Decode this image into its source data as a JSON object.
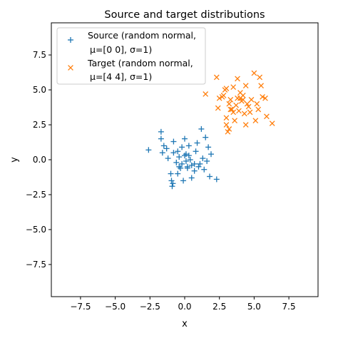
{
  "chart_data": {
    "type": "scatter",
    "title": "Source and target distributions",
    "xlabel": "x",
    "ylabel": "y",
    "xlim": [
      -9.6,
      9.6
    ],
    "ylim": [
      -9.8,
      9.8
    ],
    "xticks": [
      -7.5,
      -5.0,
      -2.5,
      0.0,
      2.5,
      5.0,
      7.5
    ],
    "yticks": [
      -7.5,
      -5.0,
      -2.5,
      0.0,
      2.5,
      5.0,
      7.5
    ],
    "xtick_labels": [
      "−7.5",
      "−5.0",
      "−2.5",
      "0.0",
      "2.5",
      "5.0",
      "7.5"
    ],
    "ytick_labels": [
      "−7.5",
      "−5.0",
      "−2.5",
      "0.0",
      "2.5",
      "5.0",
      "7.5"
    ],
    "grid": false,
    "legend_position": "top-left",
    "series": [
      {
        "name": "Source (random normal,\n μ=[0 0], σ=1)",
        "legend_lines": [
          "Source (random normal,",
          "μ=[0 0], σ=1)"
        ],
        "marker": "plus",
        "color": "#1f77b4",
        "points": [
          [
            -2.6,
            0.7
          ],
          [
            -1.7,
            2.0
          ],
          [
            -1.6,
            0.5
          ],
          [
            -1.5,
            1.0
          ],
          [
            -1.3,
            0.8
          ],
          [
            -1.2,
            0.1
          ],
          [
            -1.0,
            -1.0
          ],
          [
            -0.95,
            -1.5
          ],
          [
            -0.9,
            -1.9
          ],
          [
            -0.85,
            -1.7
          ],
          [
            -0.8,
            0.5
          ],
          [
            -0.8,
            1.3
          ],
          [
            -0.6,
            -0.2
          ],
          [
            -0.5,
            0.6
          ],
          [
            -0.5,
            -1.0
          ],
          [
            -0.4,
            0.2
          ],
          [
            -0.3,
            -0.6
          ],
          [
            -0.2,
            0.9
          ],
          [
            -0.2,
            -0.3
          ],
          [
            -0.1,
            -1.5
          ],
          [
            0.0,
            1.5
          ],
          [
            0.0,
            0.3
          ],
          [
            0.1,
            0.4
          ],
          [
            0.2,
            -0.5
          ],
          [
            0.2,
            -0.6
          ],
          [
            0.3,
            1.0
          ],
          [
            0.3,
            0.3
          ],
          [
            0.4,
            0.0
          ],
          [
            0.5,
            -1.3
          ],
          [
            0.5,
            -0.4
          ],
          [
            0.7,
            -0.8
          ],
          [
            0.7,
            -0.3
          ],
          [
            0.8,
            0.6
          ],
          [
            0.9,
            1.2
          ],
          [
            1.0,
            -0.5
          ],
          [
            1.1,
            -0.3
          ],
          [
            1.2,
            2.2
          ],
          [
            1.3,
            0.1
          ],
          [
            1.4,
            -0.7
          ],
          [
            1.5,
            1.6
          ],
          [
            1.6,
            -0.1
          ],
          [
            1.7,
            0.9
          ],
          [
            1.8,
            -1.2
          ],
          [
            1.9,
            0.4
          ],
          [
            2.3,
            -1.4
          ],
          [
            -1.7,
            1.5
          ],
          [
            0.1,
            -0.1
          ],
          [
            -0.4,
            -0.5
          ]
        ]
      },
      {
        "name": "Target (random normal,\n μ=[4 4], σ=1)",
        "legend_lines": [
          "Target (random normal,",
          "μ=[4 4], σ=1)"
        ],
        "marker": "x",
        "color": "#ff7f0e",
        "points": [
          [
            1.5,
            4.7
          ],
          [
            2.3,
            5.9
          ],
          [
            2.4,
            3.7
          ],
          [
            2.5,
            4.4
          ],
          [
            2.8,
            4.6
          ],
          [
            2.9,
            5.0
          ],
          [
            3.0,
            3.0
          ],
          [
            3.0,
            2.5
          ],
          [
            3.1,
            2.0
          ],
          [
            3.2,
            4.0
          ],
          [
            3.2,
            2.2
          ],
          [
            3.3,
            4.3
          ],
          [
            3.4,
            3.6
          ],
          [
            3.5,
            3.4
          ],
          [
            3.5,
            5.2
          ],
          [
            3.6,
            2.8
          ],
          [
            3.7,
            3.9
          ],
          [
            3.8,
            4.4
          ],
          [
            3.8,
            5.8
          ],
          [
            3.9,
            3.5
          ],
          [
            4.0,
            4.8
          ],
          [
            4.0,
            4.4
          ],
          [
            4.1,
            4.2
          ],
          [
            4.2,
            4.6
          ],
          [
            4.3,
            3.3
          ],
          [
            4.4,
            2.5
          ],
          [
            4.4,
            5.3
          ],
          [
            4.5,
            4.0
          ],
          [
            4.6,
            3.8
          ],
          [
            4.7,
            3.4
          ],
          [
            4.8,
            4.3
          ],
          [
            5.0,
            6.2
          ],
          [
            5.1,
            2.8
          ],
          [
            5.2,
            4.0
          ],
          [
            5.3,
            3.6
          ],
          [
            5.4,
            5.9
          ],
          [
            5.5,
            5.3
          ],
          [
            5.6,
            4.5
          ],
          [
            5.8,
            4.4
          ],
          [
            5.9,
            3.1
          ],
          [
            6.3,
            2.6
          ],
          [
            3.0,
            5.1
          ],
          [
            2.7,
            4.5
          ],
          [
            4.2,
            4.3
          ],
          [
            3.3,
            3.6
          ]
        ]
      }
    ]
  }
}
